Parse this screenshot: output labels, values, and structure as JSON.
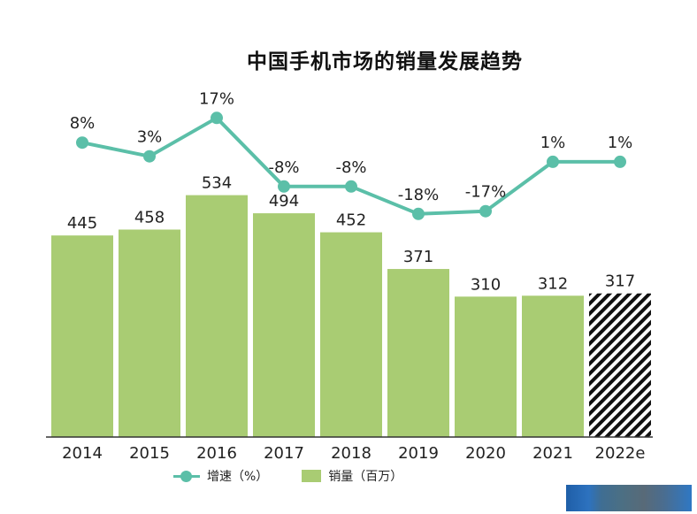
{
  "chart_data": {
    "type": "bar",
    "title": "中国手机市场的销量发展趋势",
    "categories": [
      "2014",
      "2015",
      "2016",
      "2017",
      "2018",
      "2019",
      "2020",
      "2021",
      "2022e"
    ],
    "series": [
      {
        "name": "销量（百万）",
        "type": "bar",
        "values": [
          445,
          458,
          534,
          494,
          452,
          371,
          310,
          312,
          317
        ],
        "labels": [
          "445",
          "458",
          "534",
          "494",
          "452",
          "371",
          "310",
          "312",
          "317"
        ],
        "color": "#a9cc73",
        "estimate_pattern_index": 8
      },
      {
        "name": "增速（%）",
        "type": "line",
        "values": [
          8,
          3,
          17,
          -8,
          -8,
          -18,
          -17,
          1,
          1
        ],
        "labels": [
          "8%",
          "3%",
          "17%",
          "-8%",
          "-8%",
          "-18%",
          "-17%",
          "1%",
          "1%"
        ],
        "color": "#5bbfa8"
      }
    ],
    "xlabel": "",
    "ylabel": "",
    "legend_position": "bottom",
    "grid": false
  },
  "legend": {
    "growth_label": "增速（%）",
    "sales_label": "销量（百万）"
  },
  "colors": {
    "bar": "#a9cc73",
    "line": "#5bbfa8",
    "axis": "#333333",
    "text": "#222222"
  }
}
